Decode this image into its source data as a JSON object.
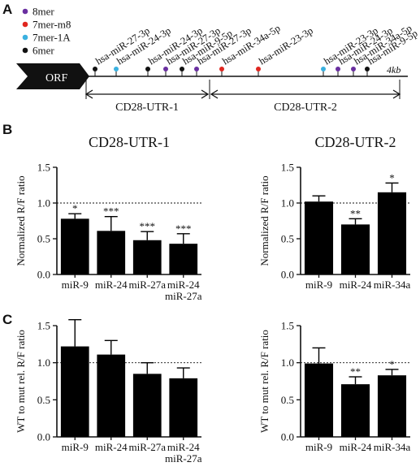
{
  "panels": {
    "a": "A",
    "b": "B",
    "c": "C"
  },
  "legend": [
    {
      "label": "8mer",
      "color": "#6a2fa0"
    },
    {
      "label": "7mer-m8",
      "color": "#e0261f"
    },
    {
      "label": "7mer-1A",
      "color": "#3bb1e0"
    },
    {
      "label": "6mer",
      "color": "#111111"
    }
  ],
  "gene_map": {
    "orf_label": "ORF",
    "scale_label": "4kb",
    "sites": [
      {
        "label": "hsa-miR-27-3p",
        "type": "6mer"
      },
      {
        "label": "hsa-miR-24-3p",
        "type": "7mer-1A"
      },
      {
        "label": "hsa-miR-24-3p",
        "type": "6mer"
      },
      {
        "label": "hsa-miR-27-3p",
        "type": "8mer"
      },
      {
        "label": "hsa-miR-9-5p",
        "type": "6mer"
      },
      {
        "label": "hsa-miR-27-3p",
        "type": "8mer"
      },
      {
        "label": "hsa-miR-34a-5p",
        "type": "7mer-m8"
      },
      {
        "label": "hsa-miR-23-3p",
        "type": "7mer-m8"
      },
      {
        "label": "hsa-miR-23-3p",
        "type": "7mer-1A"
      },
      {
        "label": "hsa-miR-24-3p",
        "type": "8mer"
      },
      {
        "label": "hsa-miR-34a-5p",
        "type": "8mer"
      },
      {
        "label": "hsa-miR-9-5p",
        "type": "6mer"
      }
    ],
    "regions": [
      "CD28-UTR-1",
      "CD28-UTR-2"
    ]
  },
  "chart_data": [
    {
      "type": "bar",
      "title": "CD28-UTR-1",
      "ylabel": "Normalized R/F ratio",
      "categories": [
        "miR-9",
        "miR-24",
        "miR-27a",
        "miR-24\nmiR-27a"
      ],
      "values": [
        0.78,
        0.61,
        0.48,
        0.43
      ],
      "errors": [
        0.07,
        0.2,
        0.12,
        0.14
      ],
      "significance": [
        "*",
        "***",
        "***",
        "***"
      ],
      "ylim": [
        0,
        1.5
      ],
      "yticks": [
        "0.0",
        "0.5",
        "1.0",
        "1.5"
      ],
      "reference_line": 1.0
    },
    {
      "type": "bar",
      "title": "CD28-UTR-2",
      "ylabel": "Normalized R/F ratio",
      "categories": [
        "miR-9",
        "miR-24",
        "miR-34a"
      ],
      "values": [
        1.02,
        0.7,
        1.15
      ],
      "errors": [
        0.08,
        0.08,
        0.13
      ],
      "significance": [
        "",
        "**",
        "*"
      ],
      "ylim": [
        0,
        1.5
      ],
      "yticks": [
        "0.0",
        "0.5",
        "1.0",
        "1.5"
      ],
      "reference_line": 1.0
    },
    {
      "type": "bar",
      "title": "",
      "ylabel": "WT to mut rel. R/F ratio",
      "categories": [
        "miR-9",
        "miR-24",
        "miR-27a",
        "miR-24\nmiR-27a"
      ],
      "values": [
        1.22,
        1.11,
        0.85,
        0.79
      ],
      "errors": [
        0.36,
        0.19,
        0.15,
        0.14
      ],
      "significance": [
        "",
        "",
        "",
        ""
      ],
      "ylim": [
        0,
        1.5
      ],
      "yticks": [
        "0.0",
        "0.5",
        "1.0",
        "1.5"
      ],
      "reference_line": 1.0
    },
    {
      "type": "bar",
      "title": "",
      "ylabel": "WT to mut rel. R/F ratio",
      "categories": [
        "miR-9",
        "miR-24",
        "miR-34a"
      ],
      "values": [
        0.99,
        0.71,
        0.83
      ],
      "errors": [
        0.21,
        0.1,
        0.08
      ],
      "significance": [
        "",
        "**",
        "*"
      ],
      "ylim": [
        0,
        1.5
      ],
      "yticks": [
        "0.0",
        "0.5",
        "1.0",
        "1.5"
      ],
      "reference_line": 1.0
    }
  ]
}
